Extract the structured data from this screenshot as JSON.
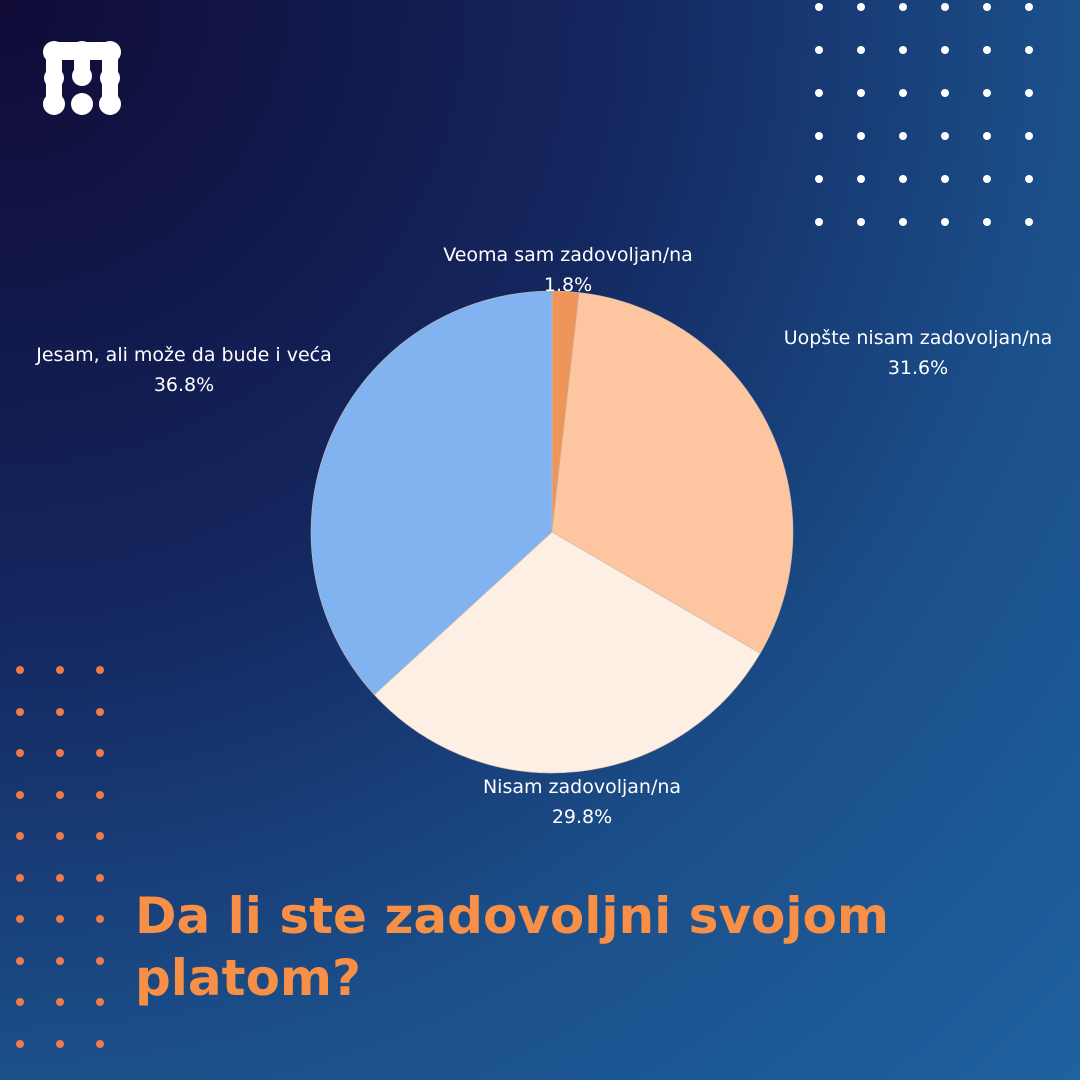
{
  "logo": {
    "name": "m-logo",
    "color": "#ffffff"
  },
  "title": "Da li ste zadovoljni svojom platom?",
  "chart_data": {
    "type": "pie",
    "start": "top",
    "direction": "clockwise",
    "slices": [
      {
        "label": "Veoma sam zadovoljan/na",
        "value": 1.8,
        "display": "1.8%",
        "color": "#f0955a"
      },
      {
        "label": "Uopšte nisam zadovoljan/na",
        "value": 31.6,
        "display": "31.6%",
        "color": "#fec6a0"
      },
      {
        "label": "Nisam zadovoljan/na",
        "value": 29.8,
        "display": "29.8%",
        "color": "#fdefe4"
      },
      {
        "label": "Jesam, ali može da bude i veća",
        "value": 36.8,
        "display": "36.8%",
        "color": "#80b3f0"
      }
    ]
  },
  "decor": {
    "dots_top_right": "#ffffff",
    "dots_left": "#f07a4a"
  }
}
